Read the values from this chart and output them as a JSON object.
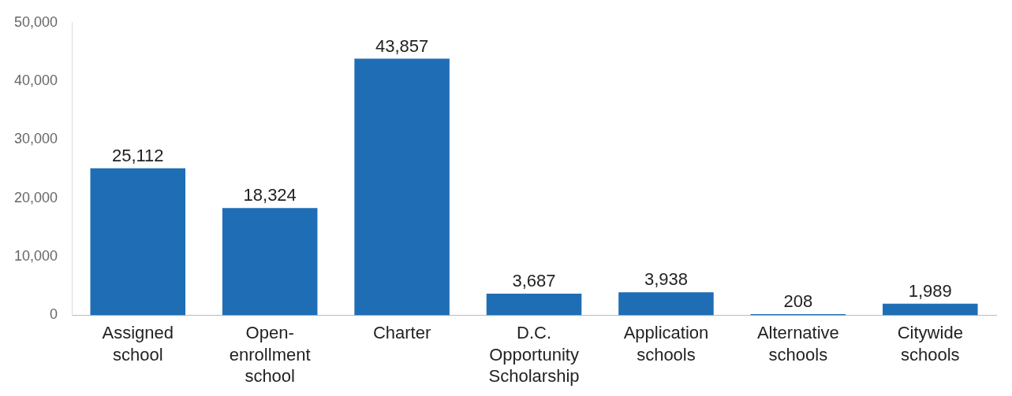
{
  "chart_data": {
    "type": "bar",
    "categories": [
      "Assigned school",
      "Open-enrollment school",
      "Charter",
      "D.C. Opportunity Scholarship",
      "Application schools",
      "Alternative schools",
      "Citywide schools"
    ],
    "values": [
      25112,
      18324,
      43857,
      3687,
      3938,
      208,
      1989
    ],
    "value_labels": [
      "25,112",
      "18,324",
      "43,857",
      "3,687",
      "3,938",
      "208",
      "1,989"
    ],
    "color": "#1f6eb5",
    "ylim": [
      0,
      50000
    ],
    "yticks": [
      0,
      {
        "value": 10000,
        "label": "10,000"
      },
      {
        "value": 20000,
        "label": "20,000"
      },
      {
        "value": 30000,
        "label": "30,000"
      },
      {
        "value": 40000,
        "label": "40,000"
      },
      {
        "value": 50000,
        "label": "50,000"
      }
    ],
    "grid": false,
    "legend": false
  }
}
